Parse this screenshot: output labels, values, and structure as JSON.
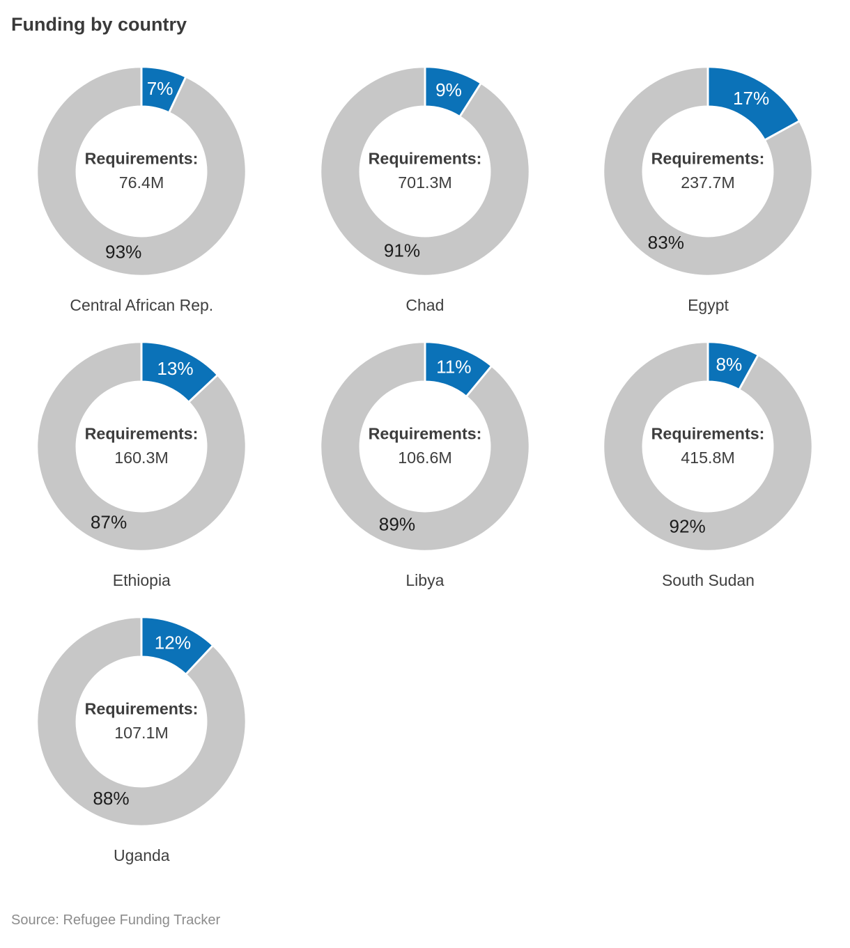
{
  "title": "Funding by country",
  "source": "Source: Refugee Funding Tracker",
  "center_heading": "Requirements:",
  "colors": {
    "funded": "#0b72b8",
    "unfunded": "#c7c7c7",
    "funded_label_text": "#ffffff",
    "unfunded_label_text": "#1c1c1c",
    "center_text": "#3d3d3d",
    "title_text": "#3a3a3a",
    "country_label_text": "#3f3f3f",
    "source_text": "#8c8c8c",
    "background": "#ffffff"
  },
  "chart_data": {
    "type": "pie",
    "subtype": "donut-small-multiples",
    "title": "Funding by country",
    "series_names": [
      "Funded",
      "Unfunded"
    ],
    "unit": "%",
    "layout": {
      "columns": 3,
      "slice_start": "12-o-clock",
      "direction": "clockwise",
      "legend": "none"
    },
    "charts": [
      {
        "country": "Central African Rep.",
        "funded_pct": 7,
        "unfunded_pct": 93,
        "funded_label": "7%",
        "unfunded_label": "93%",
        "center_heading": "Requirements:",
        "requirements": "76.4M"
      },
      {
        "country": "Chad",
        "funded_pct": 9,
        "unfunded_pct": 91,
        "funded_label": "9%",
        "unfunded_label": "91%",
        "center_heading": "Requirements:",
        "requirements": "701.3M"
      },
      {
        "country": "Egypt",
        "funded_pct": 17,
        "unfunded_pct": 83,
        "funded_label": "17%",
        "unfunded_label": "83%",
        "center_heading": "Requirements:",
        "requirements": "237.7M"
      },
      {
        "country": "Ethiopia",
        "funded_pct": 13,
        "unfunded_pct": 87,
        "funded_label": "13%",
        "unfunded_label": "87%",
        "center_heading": "Requirements:",
        "requirements": "160.3M"
      },
      {
        "country": "Libya",
        "funded_pct": 11,
        "unfunded_pct": 89,
        "funded_label": "11%",
        "unfunded_label": "89%",
        "center_heading": "Requirements:",
        "requirements": "106.6M"
      },
      {
        "country": "South Sudan",
        "funded_pct": 8,
        "unfunded_pct": 92,
        "funded_label": "8%",
        "unfunded_label": "92%",
        "center_heading": "Requirements:",
        "requirements": "415.8M"
      },
      {
        "country": "Uganda",
        "funded_pct": 12,
        "unfunded_pct": 88,
        "funded_label": "12%",
        "unfunded_label": "88%",
        "center_heading": "Requirements:",
        "requirements": "107.1M"
      }
    ]
  }
}
